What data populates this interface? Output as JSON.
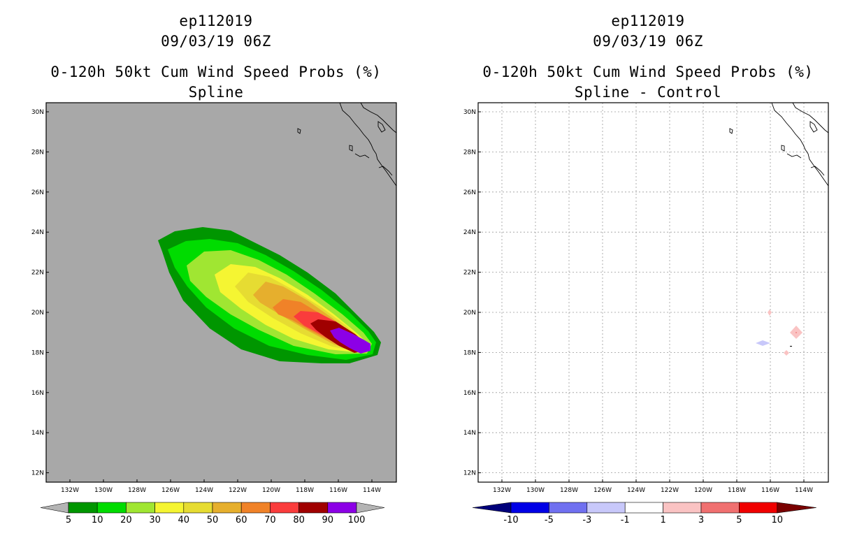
{
  "left": {
    "title_storm": "ep112019",
    "title_date": "09/03/19 06Z",
    "title_product": "0-120h 50kt Cum Wind Speed Probs (%)",
    "title_method": "Spline",
    "background": "#a8a8a8",
    "colorbar": {
      "colors": [
        "#009600",
        "#00dc00",
        "#a0e632",
        "#f5f532",
        "#e6dc32",
        "#e6af2d",
        "#f08228",
        "#fa3c3c",
        "#a00000",
        "#8c00e6"
      ],
      "labels": [
        "5",
        "10",
        "20",
        "30",
        "40",
        "50",
        "60",
        "70",
        "80",
        "90",
        "100"
      ],
      "end_color": "#b4b4b4"
    }
  },
  "right": {
    "title_storm": "ep112019",
    "title_date": "09/03/19 06Z",
    "title_product": "0-120h 50kt Cum Wind Speed Probs (%)",
    "title_method": "Spline - Control",
    "background": "#ffffff",
    "colorbar": {
      "colors": [
        "#0000e6",
        "#7070f0",
        "#c8c8fa",
        "#ffffff",
        "#fac3c3",
        "#f07070",
        "#f00000"
      ],
      "left_end_color": "#00007a",
      "right_end_color": "#7a0000",
      "labels": [
        "-10",
        "-5",
        "-3",
        "-1",
        "1",
        "3",
        "5",
        "10"
      ]
    }
  },
  "axes": {
    "lat_labels": [
      "30N",
      "28N",
      "26N",
      "24N",
      "22N",
      "20N",
      "18N",
      "16N",
      "14N",
      "12N"
    ],
    "lon_labels": [
      "132W",
      "130W",
      "128W",
      "126W",
      "124W",
      "122W",
      "120W",
      "118W",
      "116W",
      "114W"
    ]
  }
}
